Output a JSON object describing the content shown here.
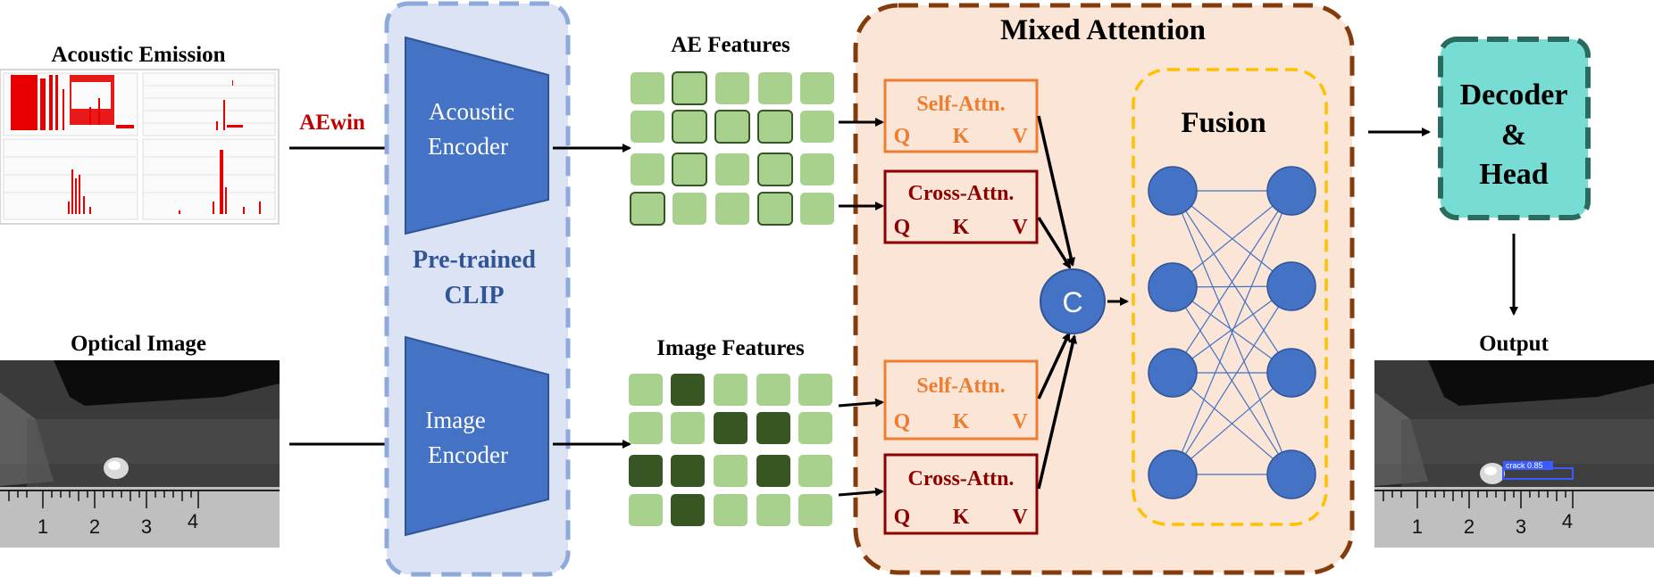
{
  "inputs": {
    "acoustic_title": "Acoustic Emission",
    "optical_title": "Optical Image",
    "aewin_label": "AEwin"
  },
  "clip": {
    "acoustic_encoder": [
      "Acoustic",
      "Encoder"
    ],
    "image_encoder": [
      "Image",
      "Encoder"
    ],
    "pretrained": [
      "Pre-trained",
      "CLIP"
    ]
  },
  "features": {
    "ae_title": "AE Features",
    "image_title": "Image Features"
  },
  "mixed_attention": {
    "title": "Mixed Attention",
    "self_attn": "Self-Attn.",
    "cross_attn": "Cross-Attn.",
    "q": "Q",
    "k": "K",
    "v": "V",
    "concat": "C",
    "fusion_title": "Fusion"
  },
  "decoder": [
    "Decoder",
    "&",
    "Head"
  ],
  "output": {
    "title": "Output",
    "detection_label": "crack 0.85"
  },
  "ruler_numbers": [
    "1",
    "2",
    "3",
    "4"
  ],
  "colors": {
    "clip_fill": "#dce3f5",
    "clip_border": "#8eaadb",
    "encoder_blue": "#4472c4",
    "clip_text": "#2f5597",
    "mixed_fill": "#fbe5d6",
    "mixed_border": "#843c0c",
    "self_attn": "#ed7d31",
    "cross_attn": "#8b0000",
    "fusion_border": "#ffc000",
    "decoder_fill": "#77dcd4",
    "decoder_border": "#2a6b60",
    "feature_light": "#a9d18e",
    "feature_dark": "#375623",
    "aewin_red": "#c00000"
  }
}
